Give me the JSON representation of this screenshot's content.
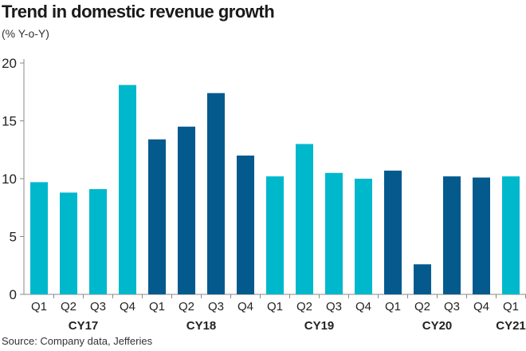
{
  "chart_data": {
    "type": "bar",
    "title": "Trend in domestic revenue growth",
    "subtitle": "(% Y-o-Y)",
    "source": "Source: Company data, Jefferies",
    "ylim": [
      0,
      20
    ],
    "yticks": [
      0,
      5,
      10,
      15,
      20
    ],
    "grid": false,
    "categories": [
      "Q1",
      "Q2",
      "Q3",
      "Q4",
      "Q1",
      "Q2",
      "Q3",
      "Q4",
      "Q1",
      "Q2",
      "Q3",
      "Q4",
      "Q1",
      "Q2",
      "Q3",
      "Q4",
      "Q1"
    ],
    "years": [
      {
        "label": "CY17",
        "start": 0,
        "count": 4
      },
      {
        "label": "CY18",
        "start": 4,
        "count": 4
      },
      {
        "label": "CY19",
        "start": 8,
        "count": 4
      },
      {
        "label": "CY20",
        "start": 12,
        "count": 4
      },
      {
        "label": "CY21",
        "start": 16,
        "count": 1
      }
    ],
    "values": [
      9.7,
      8.8,
      9.1,
      18.1,
      13.4,
      14.5,
      17.4,
      12.0,
      10.2,
      13.0,
      10.5,
      10.0,
      10.7,
      2.6,
      10.2,
      10.1,
      10.2
    ],
    "colors": {
      "light": "#00B8CC",
      "dark": "#045A8D"
    },
    "bar_color_by_index": [
      "light",
      "light",
      "light",
      "light",
      "dark",
      "dark",
      "dark",
      "dark",
      "light",
      "light",
      "light",
      "light",
      "dark",
      "dark",
      "dark",
      "dark",
      "light"
    ]
  }
}
